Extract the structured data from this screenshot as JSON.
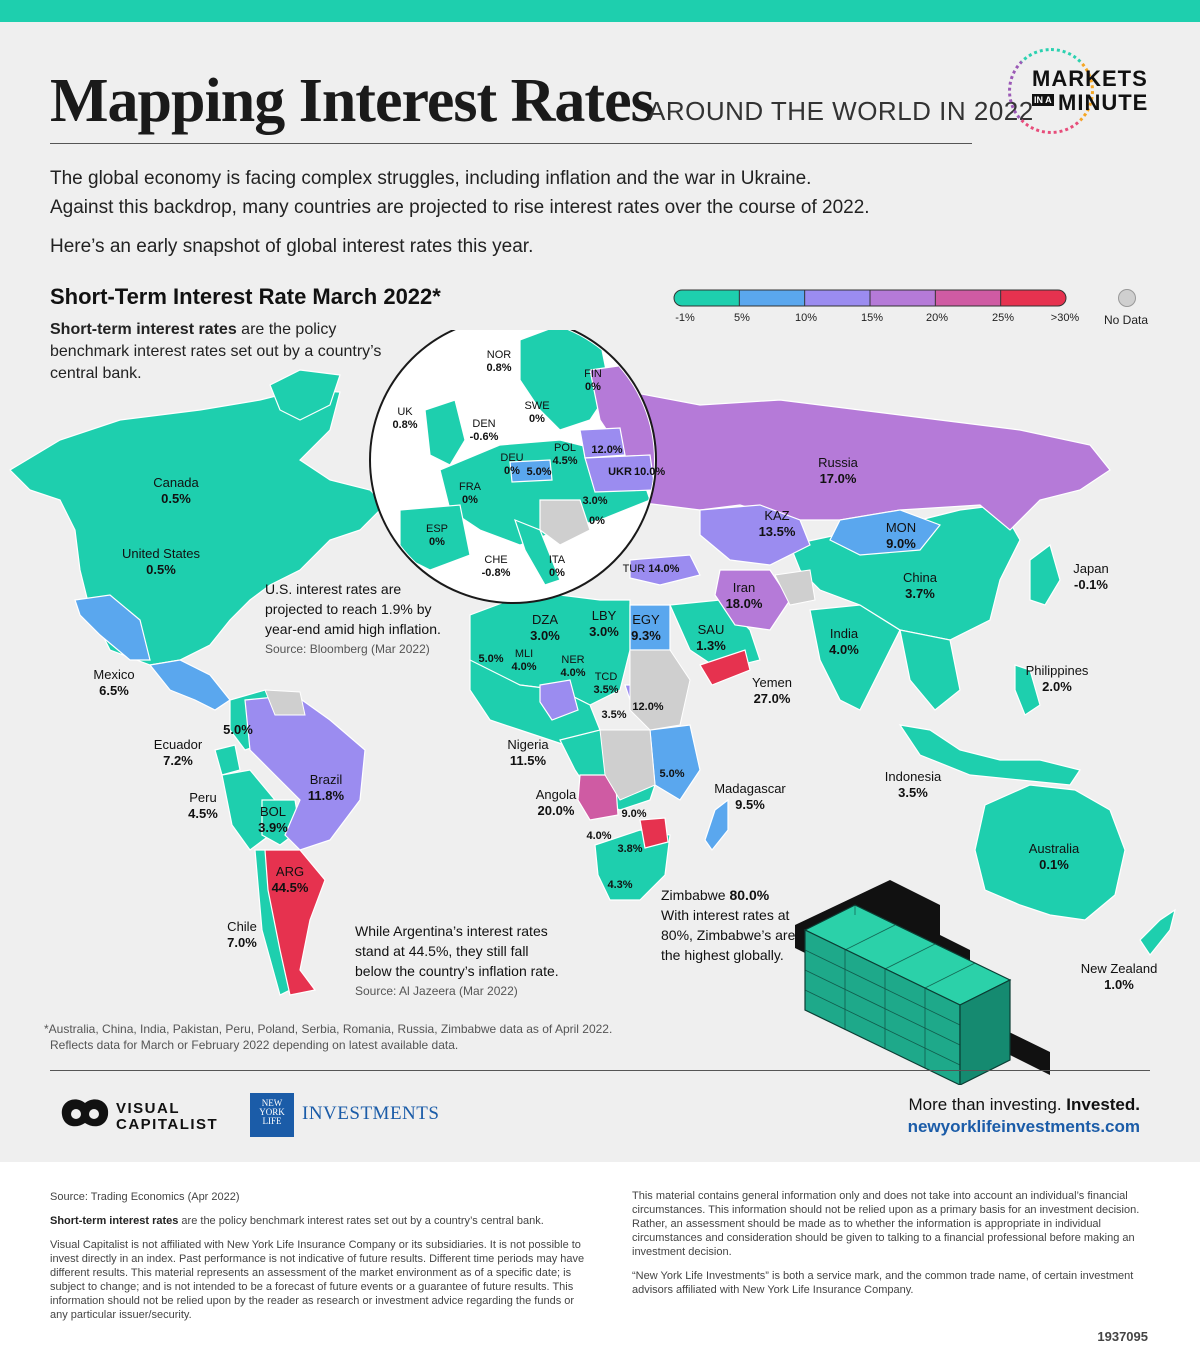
{
  "header": {
    "title": "Mapping Interest Rates",
    "subtitle": "AROUND THE WORLD IN 2022",
    "logo_line1": "MARKETS",
    "logo_in": "IN A",
    "logo_line2": "MINUTE"
  },
  "intro": {
    "line1": "The global economy is facing complex struggles, including inflation and the war in Ukraine.",
    "line2": "Against this backdrop, many countries are projected to rise interest rates over the course of 2022.",
    "line3": "Here’s an early snapshot of global interest rates this year."
  },
  "section": {
    "title": "Short-Term Interest Rate March 2022*",
    "desc_bold": "Short-term interest rates",
    "desc_rest": " are the policy benchmark interest rates set out by a country’s central bank."
  },
  "legend": {
    "ticks": [
      "-1%",
      "5%",
      "10%",
      "15%",
      "20%",
      "25%",
      ">30%"
    ],
    "colors": [
      "#1ecfae",
      "#5aa7ee",
      "#9b8cf0",
      "#b57ad8",
      "#cf5ba3",
      "#e6324f"
    ],
    "no_data": "No Data",
    "no_data_color": "#cfcfcf"
  },
  "countries": [
    {
      "id": "canada",
      "name": "Canada",
      "value": "0.5%"
    },
    {
      "id": "us",
      "name": "United States",
      "value": "0.5%"
    },
    {
      "id": "mexico",
      "name": "Mexico",
      "value": "6.5%"
    },
    {
      "id": "ecuador",
      "name": "Ecuador",
      "value": "7.2%"
    },
    {
      "id": "peru",
      "name": "Peru",
      "value": "4.5%"
    },
    {
      "id": "bol",
      "name": "BOL",
      "value": "3.9%"
    },
    {
      "id": "brazil",
      "name": "Brazil",
      "value": "11.8%"
    },
    {
      "id": "arg",
      "name": "ARG",
      "value": "44.5%"
    },
    {
      "id": "chile",
      "name": "Chile",
      "value": "7.0%"
    },
    {
      "id": "col",
      "name": "",
      "value": "5.0%"
    },
    {
      "id": "nor",
      "name": "NOR",
      "value": "0.8%"
    },
    {
      "id": "fin",
      "name": "FIN",
      "value": "0%"
    },
    {
      "id": "swe",
      "name": "SWE",
      "value": "0%"
    },
    {
      "id": "uk",
      "name": "UK",
      "value": "0.8%"
    },
    {
      "id": "den",
      "name": "DEN",
      "value": "-0.6%"
    },
    {
      "id": "deu",
      "name": "DEU",
      "value": "0%"
    },
    {
      "id": "pol",
      "name": "POL",
      "value": "4.5%"
    },
    {
      "id": "blr",
      "name": "",
      "value": "12.0%"
    },
    {
      "id": "cze",
      "name": "",
      "value": "5.0%"
    },
    {
      "id": "ukr",
      "name": "UKR",
      "value": "10.0%"
    },
    {
      "id": "fra",
      "name": "FRA",
      "value": "0%"
    },
    {
      "id": "rou",
      "name": "",
      "value": "3.0%"
    },
    {
      "id": "bgr",
      "name": "",
      "value": "0%"
    },
    {
      "id": "esp",
      "name": "ESP",
      "value": "0%"
    },
    {
      "id": "che",
      "name": "CHE",
      "value": "-0.8%"
    },
    {
      "id": "ita",
      "name": "ITA",
      "value": "0%"
    },
    {
      "id": "tur",
      "name": "TUR",
      "value": "14.0%"
    },
    {
      "id": "russia",
      "name": "Russia",
      "value": "17.0%"
    },
    {
      "id": "kaz",
      "name": "KAZ",
      "value": "13.5%"
    },
    {
      "id": "mon",
      "name": "MON",
      "value": "9.0%"
    },
    {
      "id": "iran",
      "name": "Iran",
      "value": "18.0%"
    },
    {
      "id": "china",
      "name": "China",
      "value": "3.7%"
    },
    {
      "id": "japan",
      "name": "Japan",
      "value": "-0.1%"
    },
    {
      "id": "india",
      "name": "India",
      "value": "4.0%"
    },
    {
      "id": "philippines",
      "name": "Philippines",
      "value": "2.0%"
    },
    {
      "id": "indonesia",
      "name": "Indonesia",
      "value": "3.5%"
    },
    {
      "id": "australia",
      "name": "Australia",
      "value": "0.1%"
    },
    {
      "id": "nz",
      "name": "New Zealand",
      "value": "1.0%"
    },
    {
      "id": "dza",
      "name": "DZA",
      "value": "3.0%"
    },
    {
      "id": "lby",
      "name": "LBY",
      "value": "3.0%"
    },
    {
      "id": "egy",
      "name": "EGY",
      "value": "9.3%"
    },
    {
      "id": "sau",
      "name": "SAU",
      "value": "1.3%"
    },
    {
      "id": "yemen",
      "name": "Yemen",
      "value": "27.0%"
    },
    {
      "id": "mar",
      "name": "",
      "value": "5.0%"
    },
    {
      "id": "mli",
      "name": "MLI",
      "value": "4.0%"
    },
    {
      "id": "ner",
      "name": "NER",
      "value": "4.0%"
    },
    {
      "id": "tcd",
      "name": "TCD",
      "value": "3.5%"
    },
    {
      "id": "cmr",
      "name": "",
      "value": "3.5%"
    },
    {
      "id": "eth",
      "name": "",
      "value": "12.0%"
    },
    {
      "id": "nigeria",
      "name": "Nigeria",
      "value": "11.5%"
    },
    {
      "id": "tza",
      "name": "",
      "value": "5.0%"
    },
    {
      "id": "angola",
      "name": "Angola",
      "value": "20.0%"
    },
    {
      "id": "zmb",
      "name": "",
      "value": "9.0%"
    },
    {
      "id": "nam",
      "name": "",
      "value": "4.0%"
    },
    {
      "id": "bwa",
      "name": "",
      "value": "3.8%"
    },
    {
      "id": "zaf",
      "name": "",
      "value": "4.3%"
    },
    {
      "id": "madagascar",
      "name": "Madagascar",
      "value": "9.5%"
    }
  ],
  "notes": {
    "us_l1": "U.S. interest rates are",
    "us_l2": "projected to reach 1.9% by",
    "us_l3": "year-end amid high inflation.",
    "us_src": "Source: Bloomberg (Mar 2022)",
    "arg_l1": "While Argentina’s interest rates",
    "arg_l2": "stand at 44.5%, they still fall",
    "arg_l3": "below the country’s inflation rate.",
    "arg_src": "Source: Al Jazeera (Mar 2022)",
    "zim_name": "Zimbabwe",
    "zim_value": "80.0%",
    "zim_l1": "With interest rates at",
    "zim_l2": "80%, Zimbabwe’s are",
    "zim_l3": "the highest globally."
  },
  "asterisk": {
    "line1": "*Australia, China, India, Pakistan, Peru, Poland, Serbia, Romania, Russia, Zimbabwe data as of April 2022.",
    "line2": "Reflects data for March or February 2022 depending on latest available data."
  },
  "brand": {
    "vc_line1": "VISUAL",
    "vc_line2": "CAPITALIST",
    "nyl_box1": "NEW",
    "nyl_box2": "YORK",
    "nyl_box3": "LIFE",
    "nyl_text": "INVESTMENTS",
    "tag_normal": "More than investing.",
    "tag_bold": "Invested.",
    "url": "newyorklifeinvestments.com"
  },
  "footer": {
    "source": "Source: Trading Economics (Apr 2022)",
    "def_bold": "Short-term interest rates",
    "def_rest": " are the policy benchmark interest rates set out by a country’s central bank.",
    "disclaimer1": "Visual Capitalist is not affiliated with New York Life Insurance Company or its subsidiaries. It is not possible to invest directly in an index. Past performance is not indicative of future results. Different time periods may have different results. This material represents an assessment of the market environment as of a specific date; is subject to change; and is not intended to be a forecast of future events or a guarantee of future results. This information should not be relied upon by the reader as research or investment advice regarding the funds or any particular issuer/security.",
    "disclaimer2": "This material contains general information only and does not take into account an individual’s financial circumstances. This information should not be relied upon as a primary basis for an investment decision. Rather, an assessment should be made as to whether the information is appropriate in individual circumstances and consideration should be given to talking to a financial professional before making an investment decision.",
    "disclaimer3": "“New York Life Investments” is both a service mark, and the common trade name, of certain investment advisors affiliated with New York Life Insurance Company.",
    "code": "1937095"
  }
}
